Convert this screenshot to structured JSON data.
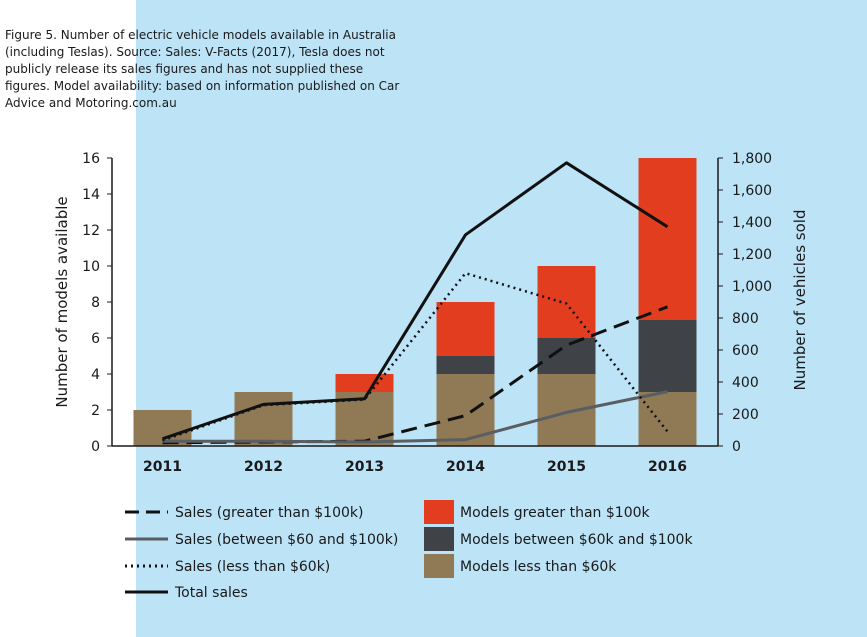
{
  "caption": "Figure 5. Number of electric vehicle models available in Australia (including Teslas). Source: Sales: V-Facts (2017), Tesla does not publicly release its sales figures and has not supplied these figures. Model availability: based on information published on Car Advice and Motoring.com.au",
  "chart_data": {
    "type": "bar",
    "categories": [
      "2011",
      "2012",
      "2013",
      "2014",
      "2015",
      "2016"
    ],
    "ylabel": "Number of models available",
    "y2label": "Number of vehicles sold",
    "ylim": [
      0,
      16
    ],
    "y2lim": [
      0,
      1800
    ],
    "yticks": [
      0,
      2,
      4,
      6,
      8,
      10,
      12,
      14,
      16
    ],
    "y2ticks": [
      "0",
      "200",
      "400",
      "600",
      "800",
      "1,000",
      "1,200",
      "1,400",
      "1,600",
      "1,800"
    ],
    "bar_series": [
      {
        "name": "Models less than $60k",
        "color": "#8f7a55",
        "values": [
          2,
          3,
          3,
          4,
          4,
          3
        ]
      },
      {
        "name": "Models between $60k and $100k",
        "color": "#3f4246",
        "values": [
          0,
          0,
          0,
          1,
          2,
          4
        ]
      },
      {
        "name": "Models greater than $100k",
        "color": "#e33d1f",
        "values": [
          0,
          0,
          1,
          3,
          4,
          9
        ]
      }
    ],
    "line_series": [
      {
        "name": "Sales (greater than $100k)",
        "axis": "right",
        "style": "dashed",
        "color": "#111111",
        "values": [
          20,
          25,
          30,
          190,
          630,
          870
        ]
      },
      {
        "name": "Sales (between $60 and $100k)",
        "axis": "right",
        "style": "solid-grey",
        "color": "#5a5d62",
        "values": [
          30,
          30,
          25,
          40,
          210,
          340
        ]
      },
      {
        "name": "Sales (less than $60k)",
        "axis": "right",
        "style": "dotted",
        "color": "#111111",
        "values": [
          35,
          255,
          290,
          1080,
          890,
          90
        ]
      },
      {
        "name": "Total sales",
        "axis": "right",
        "style": "solid",
        "color": "#111111",
        "values": [
          45,
          260,
          295,
          1320,
          1770,
          1370
        ]
      }
    ],
    "legend_position": "bottom"
  }
}
